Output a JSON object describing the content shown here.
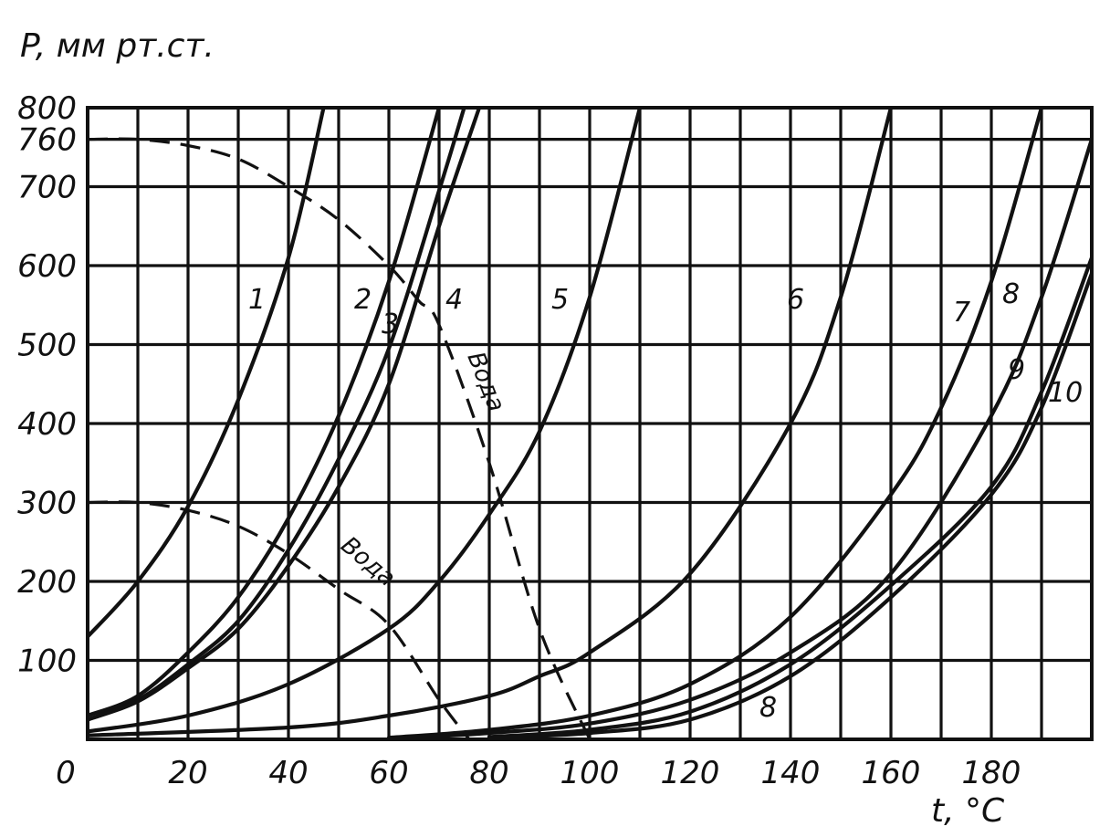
{
  "chart_data": {
    "type": "line",
    "ylabel": "P, мм рт.ст.",
    "xlabel": "t, °C",
    "xlim": [
      0,
      200
    ],
    "ylim": [
      0,
      800
    ],
    "x_ticks": [
      "0",
      "20",
      "40",
      "60",
      "80",
      "100",
      "120",
      "140",
      "160",
      "180"
    ],
    "y_ticks": [
      "100",
      "200",
      "300",
      "400",
      "500",
      "600",
      "700",
      "760",
      "800"
    ],
    "grid": true,
    "series": [
      {
        "name": "1",
        "x": [
          0,
          10,
          20,
          30,
          40,
          47
        ],
        "y": [
          130,
          200,
          295,
          430,
          610,
          800
        ]
      },
      {
        "name": "2",
        "x": [
          0,
          10,
          20,
          30,
          40,
          50,
          60,
          70
        ],
        "y": [
          30,
          55,
          110,
          180,
          280,
          410,
          580,
          800
        ]
      },
      {
        "name": "3",
        "x": [
          0,
          10,
          20,
          30,
          40,
          50,
          60,
          70,
          75
        ],
        "y": [
          25,
          50,
          95,
          150,
          240,
          355,
          495,
          695,
          800
        ]
      },
      {
        "name": "4",
        "x": [
          0,
          10,
          20,
          30,
          40,
          50,
          60,
          70,
          78
        ],
        "y": [
          25,
          48,
          90,
          140,
          220,
          320,
          450,
          650,
          800
        ]
      },
      {
        "name": "5",
        "x": [
          0,
          20,
          40,
          60,
          70,
          80,
          90,
          100,
          110
        ],
        "y": [
          10,
          30,
          70,
          140,
          200,
          285,
          390,
          560,
          800
        ]
      },
      {
        "name": "6",
        "x": [
          0,
          40,
          60,
          80,
          90,
          100,
          120,
          140,
          150,
          160
        ],
        "y": [
          5,
          15,
          30,
          55,
          80,
          110,
          210,
          400,
          560,
          800
        ]
      },
      {
        "name": "7",
        "x": [
          60,
          80,
          100,
          120,
          140,
          160,
          170,
          180,
          190
        ],
        "y": [
          2,
          12,
          30,
          70,
          155,
          310,
          420,
          580,
          800
        ]
      },
      {
        "name": "8",
        "x": [
          60,
          80,
          100,
          120,
          140,
          160,
          180,
          190,
          200
        ],
        "y": [
          1,
          8,
          20,
          50,
          110,
          210,
          410,
          560,
          760
        ]
      },
      {
        "name": "9",
        "x": [
          80,
          100,
          120,
          140,
          160,
          180,
          190,
          200
        ],
        "y": [
          3,
          12,
          35,
          95,
          195,
          320,
          440,
          610
        ]
      },
      {
        "name": "10",
        "x": [
          80,
          100,
          120,
          140,
          160,
          180,
          190,
          200
        ],
        "y": [
          2,
          8,
          25,
          80,
          180,
          310,
          420,
          590
        ]
      }
    ],
    "dashed_curves": [
      {
        "label": "Вода",
        "x": [
          0,
          10,
          20,
          30,
          40,
          50,
          60,
          66,
          70,
          80,
          90,
          100
        ],
        "y": [
          760,
          760,
          752,
          735,
          700,
          658,
          600,
          555,
          525,
          350,
          140,
          0
        ]
      },
      {
        "label": "Вода",
        "x": [
          0,
          10,
          20,
          30,
          40,
          50,
          60,
          70,
          76
        ],
        "y": [
          300,
          300,
          290,
          270,
          235,
          190,
          145,
          50,
          0
        ]
      }
    ],
    "curve_labels": [
      "1",
      "2",
      "3",
      "4",
      "5",
      "6",
      "7",
      "8",
      "9",
      "10",
      "8"
    ]
  }
}
